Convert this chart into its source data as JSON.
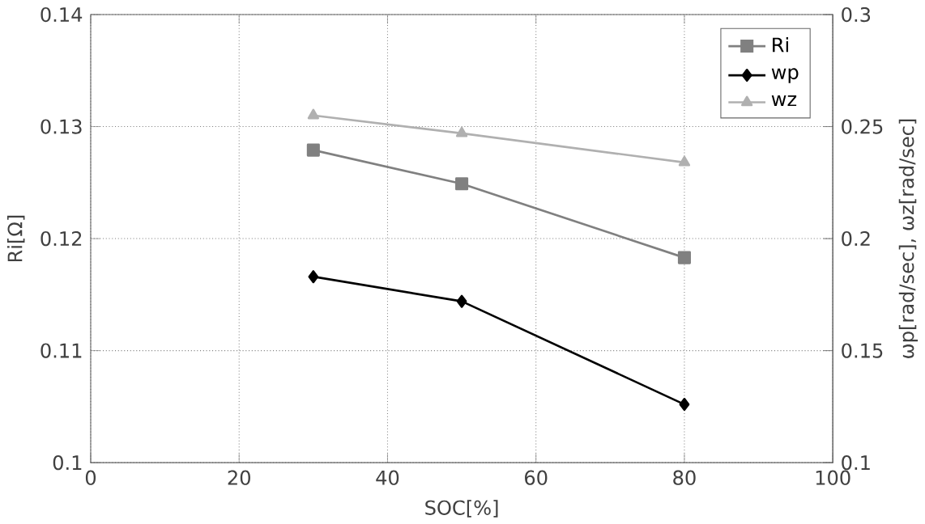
{
  "chart_data": {
    "type": "line",
    "xlabel": "SOC[%]",
    "ylabel": "Ri[Ω]",
    "y2label": "ωp[rad/sec], ωz[rad/sec]",
    "x": [
      30,
      50,
      80
    ],
    "series": [
      {
        "name": "Ri",
        "color": "#808080",
        "marker": "square",
        "values": [
          0.1279,
          0.1249,
          0.1183
        ]
      },
      {
        "name": "wp",
        "color": "#000000",
        "marker": "diamond",
        "axis": "y2",
        "values": [
          0.183,
          0.172,
          0.126
        ]
      },
      {
        "name": "wz",
        "color": "#b0b0b0",
        "marker": "triangle",
        "axis": "y2",
        "values": [
          0.255,
          0.247,
          0.234
        ]
      }
    ],
    "xlim": [
      0,
      100
    ],
    "xticks": [
      0,
      20,
      40,
      60,
      80,
      100
    ],
    "ylim": [
      0.1,
      0.14
    ],
    "yticks": [
      0.1,
      0.11,
      0.12,
      0.13,
      0.14
    ],
    "y2lim": [
      0.1,
      0.3
    ],
    "y2ticks": [
      0.1,
      0.15,
      0.2,
      0.25,
      0.3
    ],
    "grid": true,
    "legend": "top right"
  }
}
